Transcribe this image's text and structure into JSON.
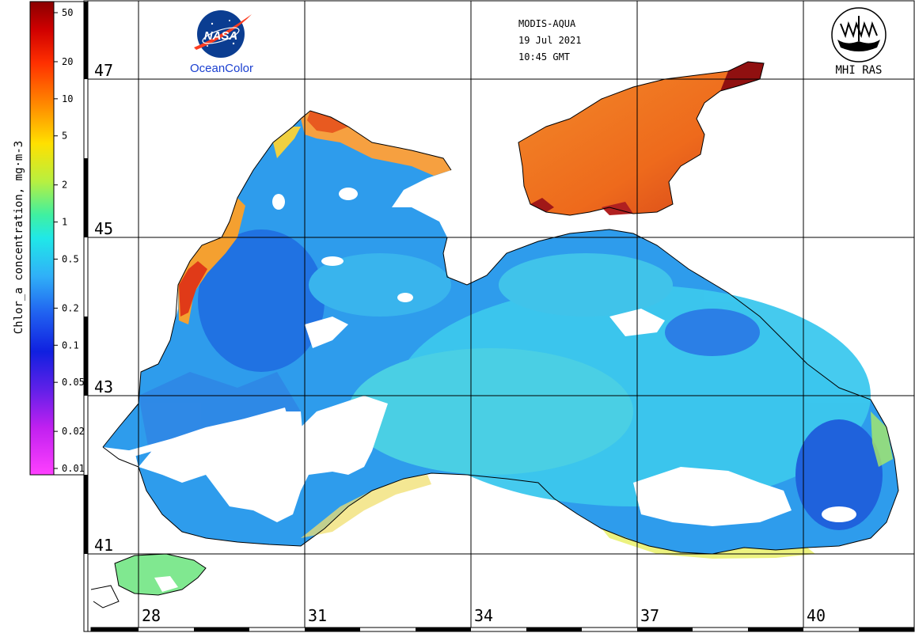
{
  "header": {
    "sensor": "MODIS-AQUA",
    "date": "19 Jul 2021",
    "time": "10:45 GMT"
  },
  "logos": {
    "nasa_text": "NASA",
    "oceancolor": "OceanColor",
    "mhi": "MHI RAS"
  },
  "colorbar": {
    "title": "Chlor_a concentration, mg·m-3",
    "ticks": [
      "50",
      "20",
      "10",
      "5",
      "2",
      "1",
      "0.5",
      "0.2",
      "0.1",
      "0.05",
      "0.02",
      "0.01"
    ],
    "scale": "log",
    "range": [
      0.01,
      50
    ]
  },
  "map": {
    "lat_labels": [
      "47",
      "45",
      "43",
      "41"
    ],
    "lon_labels": [
      "28",
      "31",
      "34",
      "37",
      "40"
    ]
  },
  "colors": {
    "frame": "#000000",
    "land": "#ffffff",
    "low_chl": "#2a7de8",
    "mid_chl": "#28c8f0",
    "high_chl": "#f07020",
    "very_high_chl": "#b01818"
  }
}
